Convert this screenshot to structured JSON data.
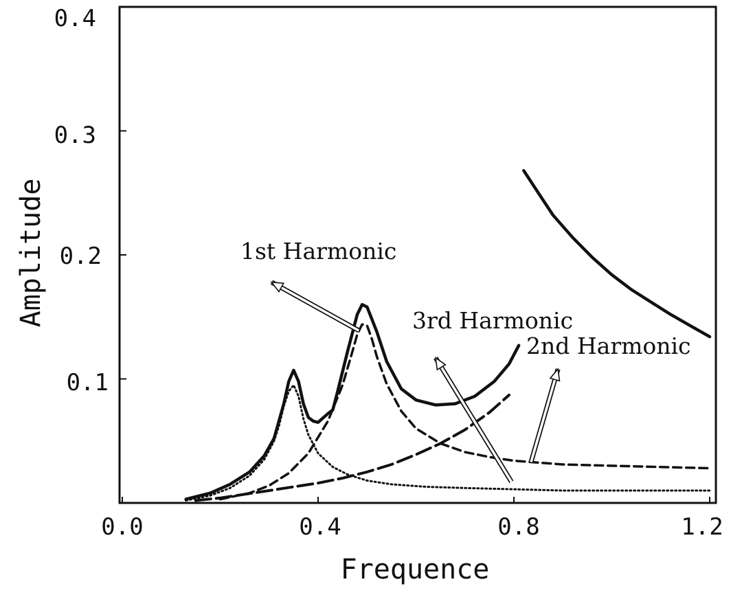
{
  "chart_data": {
    "type": "line",
    "xlabel": "Frequence",
    "ylabel": "Amplitude",
    "xlim": [
      0.0,
      1.2
    ],
    "ylim": [
      0.0,
      0.4
    ],
    "x_ticks": [
      "0.0",
      "0.4",
      "0.8",
      "1.2"
    ],
    "y_ticks": [
      "0.1",
      "0.2",
      "0.3",
      "0.4"
    ],
    "grid": false,
    "annotations": [
      {
        "text": "1st Harmonic",
        "x": 0.24,
        "y": 0.197
      },
      {
        "text": "3rd Harmonic",
        "x": 0.58,
        "y": 0.143
      },
      {
        "text": "2nd Harmonic",
        "x": 0.81,
        "y": 0.125
      }
    ],
    "series": [
      {
        "style": "solid",
        "x": [
          0.13,
          0.18,
          0.22,
          0.26,
          0.29,
          0.31,
          0.33,
          0.34,
          0.35,
          0.36,
          0.37,
          0.38,
          0.39,
          0.4,
          0.42,
          0.43,
          0.44,
          0.46,
          0.48,
          0.49,
          0.5,
          0.52,
          0.54,
          0.57,
          0.6,
          0.64,
          0.68,
          0.72,
          0.76,
          0.79,
          0.81
        ],
        "y": [
          0.003,
          0.008,
          0.015,
          0.025,
          0.038,
          0.052,
          0.08,
          0.098,
          0.107,
          0.098,
          0.08,
          0.069,
          0.066,
          0.065,
          0.072,
          0.075,
          0.09,
          0.122,
          0.152,
          0.16,
          0.158,
          0.138,
          0.114,
          0.092,
          0.083,
          0.079,
          0.08,
          0.086,
          0.098,
          0.112,
          0.127
        ]
      },
      {
        "style": "solid",
        "x": [
          0.82,
          0.85,
          0.88,
          0.92,
          0.96,
          1.0,
          1.04,
          1.08,
          1.12,
          1.16,
          1.2
        ],
        "y": [
          0.268,
          0.25,
          0.232,
          0.214,
          0.198,
          0.184,
          0.172,
          0.162,
          0.152,
          0.143,
          0.134
        ]
      },
      {
        "style": "dotted",
        "x": [
          0.13,
          0.18,
          0.22,
          0.26,
          0.29,
          0.31,
          0.32,
          0.33,
          0.34,
          0.35,
          0.36,
          0.37,
          0.38,
          0.4,
          0.43,
          0.46,
          0.5,
          0.55,
          0.62,
          0.7,
          0.8,
          0.9,
          1.0,
          1.1,
          1.2
        ],
        "y": [
          0.002,
          0.006,
          0.012,
          0.022,
          0.035,
          0.05,
          0.062,
          0.078,
          0.09,
          0.095,
          0.086,
          0.068,
          0.055,
          0.04,
          0.029,
          0.023,
          0.018,
          0.015,
          0.013,
          0.012,
          0.011,
          0.01,
          0.01,
          0.01,
          0.01
        ]
      },
      {
        "style": "dashed",
        "x": [
          0.2,
          0.26,
          0.3,
          0.34,
          0.38,
          0.42,
          0.45,
          0.47,
          0.48,
          0.49,
          0.5,
          0.51,
          0.52,
          0.54,
          0.57,
          0.6,
          0.65,
          0.7,
          0.75,
          0.8,
          0.9,
          1.0,
          1.1,
          1.2
        ],
        "y": [
          0.003,
          0.008,
          0.014,
          0.024,
          0.04,
          0.066,
          0.095,
          0.122,
          0.136,
          0.144,
          0.143,
          0.132,
          0.118,
          0.096,
          0.074,
          0.06,
          0.048,
          0.041,
          0.037,
          0.034,
          0.031,
          0.03,
          0.029,
          0.028
        ]
      },
      {
        "style": "longdash",
        "x": [
          0.15,
          0.2,
          0.25,
          0.3,
          0.35,
          0.4,
          0.45,
          0.5,
          0.55,
          0.6,
          0.65,
          0.7,
          0.75,
          0.79
        ],
        "y": [
          0.002,
          0.004,
          0.007,
          0.01,
          0.013,
          0.016,
          0.02,
          0.025,
          0.031,
          0.039,
          0.048,
          0.059,
          0.073,
          0.087
        ]
      }
    ]
  }
}
